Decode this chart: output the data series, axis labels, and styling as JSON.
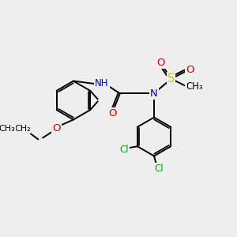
{
  "bg_color": "#eeeeee",
  "atom_colors": {
    "C": "#000000",
    "N": "#0000cc",
    "O": "#cc0000",
    "S": "#cccc00",
    "Cl": "#00aa00",
    "H": "#888888"
  },
  "bond_color": "#000000",
  "bond_lw": 1.4,
  "font_size": 8.5,
  "figsize": [
    3.0,
    3.0
  ],
  "dpi": 100,
  "xlim": [
    0,
    10
  ],
  "ylim": [
    0,
    10
  ]
}
